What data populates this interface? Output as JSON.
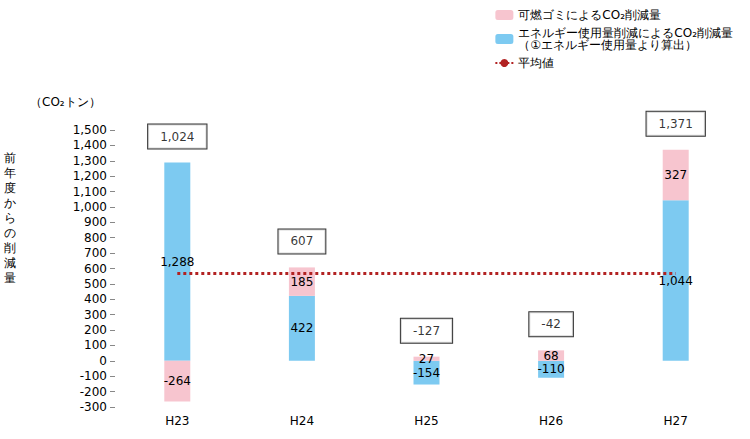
{
  "chart_data": {
    "type": "bar",
    "stacked": true,
    "data_labels": true,
    "grid": false,
    "legend": "top-right",
    "y_unit": "（CO₂トン）",
    "y_label": "前年度からの削減量",
    "categories": [
      "H23",
      "H24",
      "H25",
      "H26",
      "H27"
    ],
    "series": [
      {
        "name": "エネルギー使用量削減によるCO₂削減量\n（①エネルギー使用量より算出）",
        "type": "bar",
        "color": "#7dcaf1",
        "values": [
          1288,
          422,
          -154,
          -110,
          1044
        ],
        "value_labels": [
          "1,288",
          "422",
          "-154",
          "-110",
          "1,044"
        ]
      },
      {
        "name": "可燃ゴミによるCO₂削減量",
        "type": "bar",
        "color": "#f7c5cf",
        "values": [
          -264,
          185,
          27,
          68,
          327
        ],
        "value_labels": [
          "-264",
          "185",
          "27",
          "68",
          "327"
        ]
      },
      {
        "name": "平均値",
        "type": "line",
        "color": "#b22222",
        "line_style": "dotted",
        "values": [
          567,
          567,
          567,
          567,
          567
        ]
      }
    ],
    "totals": [
      1024,
      607,
      -127,
      -42,
      1371
    ],
    "total_labels": [
      "1,024",
      "607",
      "-127",
      "-42",
      "1,371"
    ],
    "ylim": [
      -300,
      1500
    ],
    "yticks": [
      -300,
      -200,
      -100,
      0,
      100,
      200,
      300,
      400,
      500,
      600,
      700,
      800,
      900,
      {
        "value": 1000,
        "label": "1,000"
      },
      {
        "value": 1100,
        "label": "1,100"
      },
      {
        "value": 1200,
        "label": "1,200"
      },
      {
        "value": 1300,
        "label": "1,300"
      },
      {
        "value": 1400,
        "label": "1,400"
      },
      {
        "value": 1500,
        "label": "1,500"
      }
    ]
  }
}
